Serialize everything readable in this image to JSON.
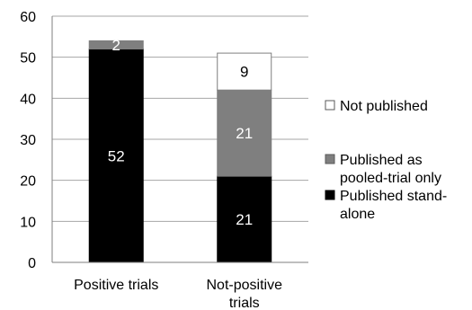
{
  "chart_data": {
    "type": "bar",
    "stacked": true,
    "title": "",
    "xlabel": "",
    "ylabel": "",
    "ylim": [
      0,
      60
    ],
    "yticks": [
      0,
      10,
      20,
      30,
      40,
      50,
      60
    ],
    "grid": true,
    "legend_position": "right",
    "categories": [
      [
        "Positive trials"
      ],
      [
        "Not-positive",
        "trials"
      ]
    ],
    "series": [
      {
        "name": "Published stand-alone",
        "legend_lines": [
          "Published stand-",
          "alone"
        ],
        "color": "#000000",
        "text_color": "#ffffff",
        "border": "#000000",
        "values": [
          52,
          21
        ]
      },
      {
        "name": "Published as pooled-trial only",
        "legend_lines": [
          "Published as",
          "pooled-trial only"
        ],
        "color": "#7f7f7f",
        "text_color": "#ffffff",
        "border": "#7f7f7f",
        "values": [
          2,
          21
        ]
      },
      {
        "name": "Not published",
        "legend_lines": [
          "Not published"
        ],
        "color": "#ffffff",
        "text_color": "#000000",
        "border": "#7f7f7f",
        "values": [
          0,
          9
        ]
      }
    ],
    "data_labels": [
      [
        "52",
        "2",
        ""
      ],
      [
        "21",
        "21",
        "9"
      ]
    ],
    "legend_order": [
      2,
      1,
      0
    ]
  }
}
